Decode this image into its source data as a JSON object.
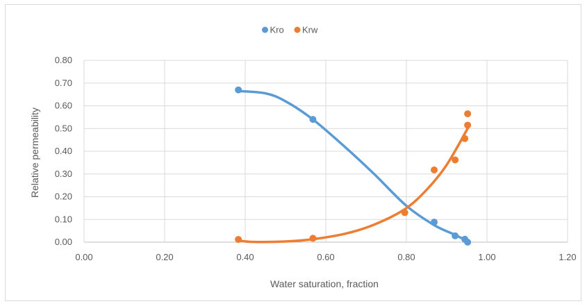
{
  "chart_data": {
    "type": "scatter",
    "title": "",
    "xlabel": "Water saturation, fraction",
    "ylabel": "Relative permeability",
    "xlim": [
      0,
      1.2
    ],
    "ylim": [
      0,
      0.8
    ],
    "xticks": [
      "0.00",
      "0.20",
      "0.40",
      "0.60",
      "0.80",
      "1.00",
      "1.20"
    ],
    "yticks": [
      "0.00",
      "0.10",
      "0.20",
      "0.30",
      "0.40",
      "0.50",
      "0.60",
      "0.70",
      "0.80"
    ],
    "grid": true,
    "legend_position": "top-center",
    "series": [
      {
        "name": "Kro",
        "color": "#5b9bd5",
        "points": [
          {
            "x": 0.383,
            "y": 0.67
          },
          {
            "x": 0.568,
            "y": 0.54
          },
          {
            "x": 0.869,
            "y": 0.088
          },
          {
            "x": 0.921,
            "y": 0.028
          },
          {
            "x": 0.945,
            "y": 0.013
          },
          {
            "x": 0.952,
            "y": 0.0
          }
        ],
        "trendline": [
          {
            "x": 0.383,
            "y": 0.665
          },
          {
            "x": 0.45,
            "y": 0.655
          },
          {
            "x": 0.5,
            "y": 0.62
          },
          {
            "x": 0.568,
            "y": 0.54
          },
          {
            "x": 0.65,
            "y": 0.415
          },
          {
            "x": 0.72,
            "y": 0.3
          },
          {
            "x": 0.8,
            "y": 0.16
          },
          {
            "x": 0.869,
            "y": 0.075
          },
          {
            "x": 0.921,
            "y": 0.032
          },
          {
            "x": 0.952,
            "y": 0.004
          }
        ]
      },
      {
        "name": "Krw",
        "color": "#ed7d31",
        "points": [
          {
            "x": 0.383,
            "y": 0.012
          },
          {
            "x": 0.568,
            "y": 0.017
          },
          {
            "x": 0.796,
            "y": 0.13
          },
          {
            "x": 0.869,
            "y": 0.318
          },
          {
            "x": 0.921,
            "y": 0.362
          },
          {
            "x": 0.945,
            "y": 0.456
          },
          {
            "x": 0.952,
            "y": 0.515
          },
          {
            "x": 0.952,
            "y": 0.565
          }
        ],
        "trendline": [
          {
            "x": 0.383,
            "y": 0.007
          },
          {
            "x": 0.42,
            "y": 0.001
          },
          {
            "x": 0.5,
            "y": 0.003
          },
          {
            "x": 0.568,
            "y": 0.013
          },
          {
            "x": 0.65,
            "y": 0.038
          },
          {
            "x": 0.72,
            "y": 0.077
          },
          {
            "x": 0.796,
            "y": 0.145
          },
          {
            "x": 0.85,
            "y": 0.23
          },
          {
            "x": 0.9,
            "y": 0.34
          },
          {
            "x": 0.952,
            "y": 0.5
          }
        ]
      }
    ]
  }
}
